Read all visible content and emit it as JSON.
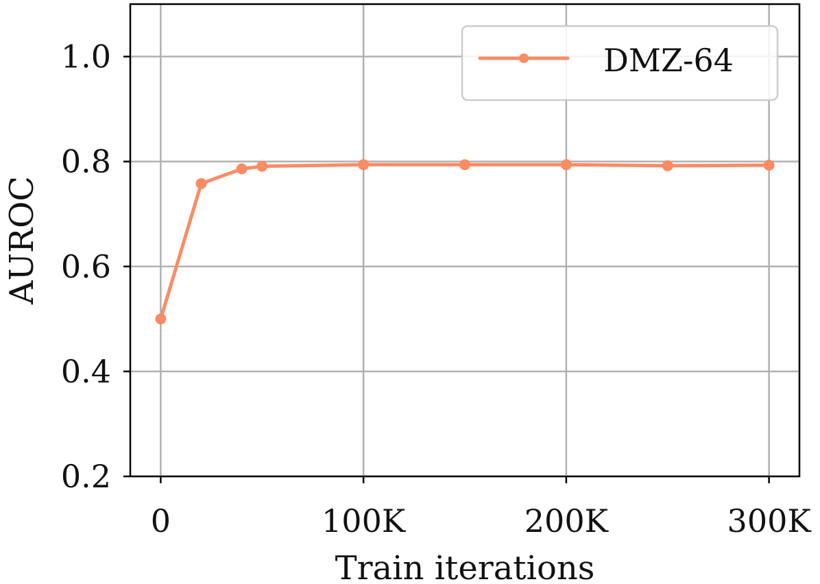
{
  "chart_data": {
    "type": "line",
    "title": "",
    "xlabel": "Train iterations",
    "ylabel": "AUROC",
    "xlim": [
      -15000,
      315000
    ],
    "ylim": [
      0.2,
      1.1
    ],
    "xticks": [
      0,
      100000,
      200000,
      300000
    ],
    "xtick_labels": [
      "0",
      "100K",
      "200K",
      "300K"
    ],
    "yticks": [
      0.2,
      0.4,
      0.6,
      0.8,
      1.0
    ],
    "ytick_labels": [
      "0.2",
      "0.4",
      "0.6",
      "0.8",
      "1.0"
    ],
    "grid": true,
    "legend_position": "top-right",
    "series": [
      {
        "name": "DMZ-64",
        "color": "#fa8c64",
        "marker": "circle",
        "x": [
          0,
          20000,
          40000,
          50000,
          100000,
          150000,
          200000,
          250000,
          300000
        ],
        "y": [
          0.5,
          0.758,
          0.786,
          0.791,
          0.794,
          0.794,
          0.794,
          0.792,
          0.793
        ]
      }
    ]
  }
}
